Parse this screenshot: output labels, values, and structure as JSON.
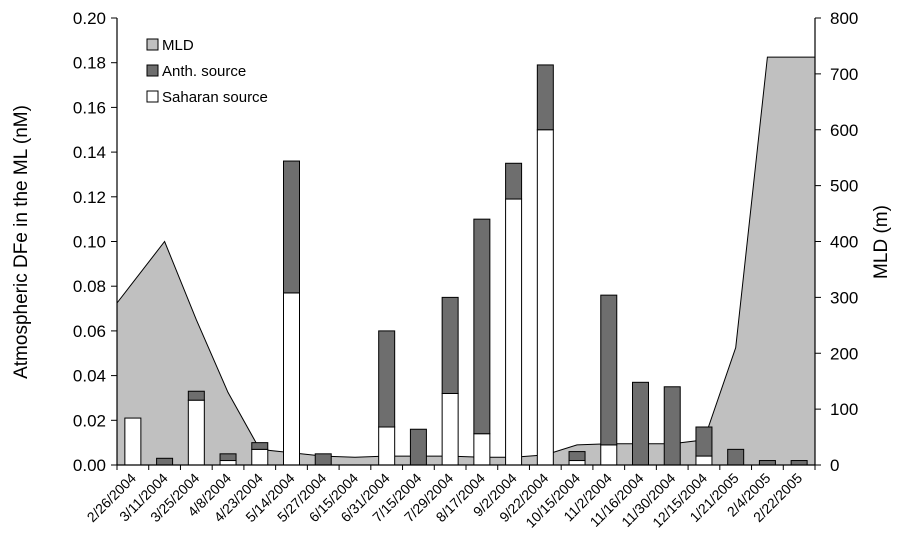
{
  "chart_data": {
    "type": "bar",
    "categories": [
      "2/26/2004",
      "3/11/2004",
      "3/25/2004",
      "4/8/2004",
      "4/23/2004",
      "5/14/2004",
      "5/27/2004",
      "6/15/2004",
      "6/31/2004",
      "7/15/2004",
      "7/29/2004",
      "8/17/2004",
      "9/2/2004",
      "9/22/2004",
      "10/15/2004",
      "11/2/2004",
      "11/16/2004",
      "11/30/2004",
      "12/15/2004",
      "1/21/2005",
      "2/4/2005",
      "2/22/2005"
    ],
    "series": [
      {
        "name": "Saharan source",
        "axis": "left",
        "stack": "dfe",
        "color": "#ffffff",
        "values": [
          0.021,
          0,
          0.029,
          0.002,
          0.007,
          0.077,
          0,
          0,
          0.017,
          0,
          0.032,
          0.014,
          0.119,
          0.15,
          0.002,
          0.009,
          0,
          0,
          0.004,
          0,
          0,
          0
        ]
      },
      {
        "name": "Anth. source",
        "axis": "left",
        "stack": "dfe",
        "color": "#6e6e6e",
        "values": [
          0,
          0.003,
          0.004,
          0.003,
          0.003,
          0.059,
          0.005,
          0,
          0.043,
          0.016,
          0.043,
          0.096,
          0.016,
          0.029,
          0.004,
          0.067,
          0.037,
          0.035,
          0.013,
          0.007,
          0.002,
          0.002
        ]
      },
      {
        "name": "MLD",
        "axis": "right",
        "type": "area",
        "color": "#c0c0c0",
        "values": [
          290,
          400,
          260,
          130,
          28,
          22,
          16,
          14,
          16,
          16,
          16,
          14,
          14,
          18,
          36,
          38,
          38,
          38,
          45,
          210,
          730,
          730
        ]
      }
    ],
    "title": "",
    "ylabel": "Atmospheric DFe in the ML (nM)",
    "ylabel_right": "MLD (m)",
    "ylim": [
      0,
      0.2
    ],
    "ylim_right": [
      0,
      800
    ],
    "yticks": [
      "0.00",
      "0.02",
      "0.04",
      "0.06",
      "0.08",
      "0.10",
      "0.12",
      "0.14",
      "0.16",
      "0.18",
      "0.20"
    ],
    "yticks_right": [
      "0",
      "100",
      "200",
      "300",
      "400",
      "500",
      "600",
      "700",
      "800"
    ],
    "legend": {
      "position": "top-left",
      "entries": [
        "MLD",
        "Anth. source",
        "Saharan source"
      ]
    },
    "grid": false
  }
}
